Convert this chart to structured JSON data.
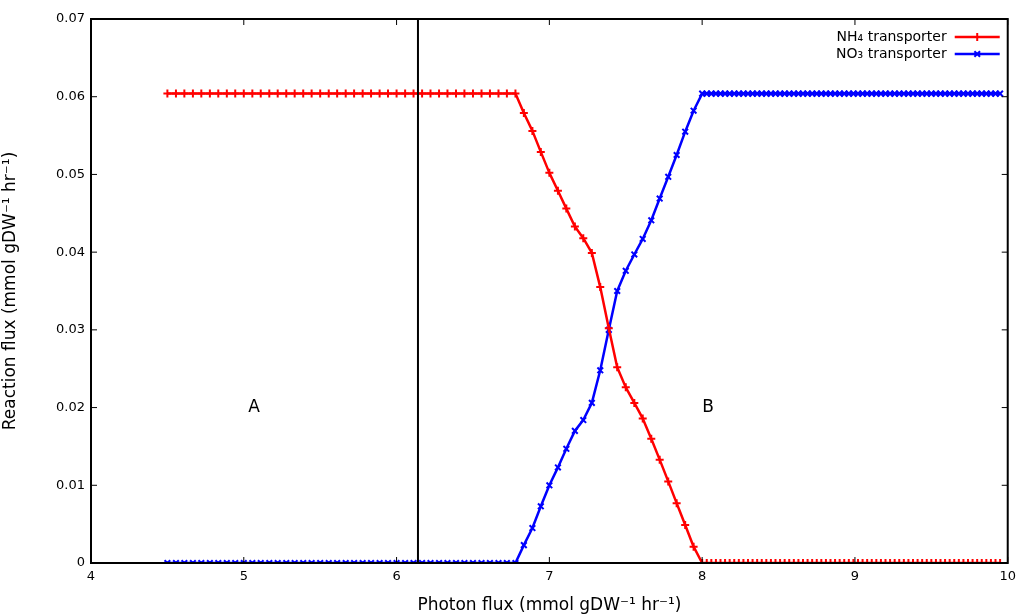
{
  "chart_data": {
    "type": "line",
    "xlabel": "Photon flux (mmol gDW⁻¹ hr⁻¹)",
    "ylabel": "Reaction flux (mmol gDW⁻¹ hr⁻¹)",
    "x": [
      4.5,
      4.556,
      4.611,
      4.667,
      4.722,
      4.778,
      4.833,
      4.889,
      4.944,
      5.0,
      5.056,
      5.111,
      5.167,
      5.222,
      5.278,
      5.333,
      5.389,
      5.444,
      5.5,
      5.556,
      5.611,
      5.667,
      5.722,
      5.778,
      5.833,
      5.889,
      5.944,
      6.0,
      6.056,
      6.111,
      6.167,
      6.222,
      6.278,
      6.333,
      6.389,
      6.444,
      6.5,
      6.556,
      6.611,
      6.667,
      6.722,
      6.778,
      6.833,
      6.889,
      6.944,
      7.0,
      7.056,
      7.111,
      7.167,
      7.222,
      7.278,
      7.333,
      7.389,
      7.444,
      7.5,
      7.556,
      7.611,
      7.667,
      7.722,
      7.778,
      7.833,
      7.889,
      7.944,
      8.0,
      8.03,
      8.06,
      8.09,
      8.12,
      8.15,
      8.18,
      8.21,
      8.24,
      8.27,
      8.3,
      8.33,
      8.36,
      8.39,
      8.42,
      8.45,
      8.48,
      8.51,
      8.54,
      8.57,
      8.6,
      8.63,
      8.66,
      8.69,
      8.72,
      8.75,
      8.78,
      8.81,
      8.84,
      8.87,
      8.9,
      8.93,
      8.96,
      8.99,
      9.02,
      9.05,
      9.08,
      9.11,
      9.14,
      9.17,
      9.2,
      9.23,
      9.26,
      9.29,
      9.32,
      9.35,
      9.38,
      9.41,
      9.44,
      9.47,
      9.5,
      9.53,
      9.56,
      9.59,
      9.62,
      9.65,
      9.68,
      9.71,
      9.74,
      9.77,
      9.8,
      9.83,
      9.86,
      9.89,
      9.92,
      9.95
    ],
    "series": [
      {
        "name": "NH₄ transporter",
        "color": "#ff0000",
        "marker": "cross",
        "values": [
          0.0604,
          0.0604,
          0.0604,
          0.0604,
          0.0604,
          0.0604,
          0.0604,
          0.0604,
          0.0604,
          0.0604,
          0.0604,
          0.0604,
          0.0604,
          0.0604,
          0.0604,
          0.0604,
          0.0604,
          0.0604,
          0.0604,
          0.0604,
          0.0604,
          0.0604,
          0.0604,
          0.0604,
          0.0604,
          0.0604,
          0.0604,
          0.0604,
          0.0604,
          0.0604,
          0.0604,
          0.0604,
          0.0604,
          0.0604,
          0.0604,
          0.0604,
          0.0604,
          0.0604,
          0.0604,
          0.0604,
          0.0604,
          0.0604,
          0.0579,
          0.0556,
          0.0529,
          0.0502,
          0.0479,
          0.0456,
          0.0433,
          0.0418,
          0.0399,
          0.0355,
          0.0302,
          0.0252,
          0.0226,
          0.0206,
          0.0186,
          0.016,
          0.0133,
          0.0105,
          0.0077,
          0.0049,
          0.0021,
          0,
          0,
          0,
          0,
          0,
          0,
          0,
          0,
          0,
          0,
          0,
          0,
          0,
          0,
          0,
          0,
          0,
          0,
          0,
          0,
          0,
          0,
          0,
          0,
          0,
          0,
          0,
          0,
          0,
          0,
          0,
          0,
          0,
          0,
          0,
          0,
          0,
          0,
          0,
          0,
          0,
          0,
          0,
          0,
          0,
          0,
          0,
          0,
          0,
          0,
          0,
          0,
          0,
          0,
          0,
          0,
          0,
          0,
          0,
          0,
          0,
          0,
          0,
          0,
          0,
          0
        ]
      },
      {
        "name": "NO₃ transporter",
        "color": "#0000ff",
        "marker": "crossRot",
        "values": [
          0,
          0,
          0,
          0,
          0,
          0,
          0,
          0,
          0,
          0,
          0,
          0,
          0,
          0,
          0,
          0,
          0,
          0,
          0,
          0,
          0,
          0,
          0,
          0,
          0,
          0,
          0,
          0,
          0,
          0,
          0,
          0,
          0,
          0,
          0,
          0,
          0,
          0,
          0,
          0,
          0,
          0,
          0.0023,
          0.0045,
          0.0073,
          0.01,
          0.0123,
          0.0147,
          0.017,
          0.0184,
          0.0206,
          0.0248,
          0.03,
          0.035,
          0.0376,
          0.0397,
          0.0417,
          0.0441,
          0.0469,
          0.0497,
          0.0525,
          0.0555,
          0.0582,
          0.0604,
          0.0604,
          0.0604,
          0.0604,
          0.0604,
          0.0604,
          0.0604,
          0.0604,
          0.0604,
          0.0604,
          0.0604,
          0.0604,
          0.0604,
          0.0604,
          0.0604,
          0.0604,
          0.0604,
          0.0604,
          0.0604,
          0.0604,
          0.0604,
          0.0604,
          0.0604,
          0.0604,
          0.0604,
          0.0604,
          0.0604,
          0.0604,
          0.0604,
          0.0604,
          0.0604,
          0.0604,
          0.0604,
          0.0604,
          0.0604,
          0.0604,
          0.0604,
          0.0604,
          0.0604,
          0.0604,
          0.0604,
          0.0604,
          0.0604,
          0.0604,
          0.0604,
          0.0604,
          0.0604,
          0.0604,
          0.0604,
          0.0604,
          0.0604,
          0.0604,
          0.0604,
          0.0604,
          0.0604,
          0.0604,
          0.0604,
          0.0604,
          0.0604,
          0.0604,
          0.0604,
          0.0604,
          0.0604,
          0.0604,
          0.0604,
          0.0604
        ]
      }
    ],
    "xlim": [
      4,
      10
    ],
    "xticks": [
      4,
      5,
      6,
      7,
      8,
      9,
      10
    ],
    "ylim": [
      0,
      0.07
    ],
    "yticks": [
      0,
      0.01,
      0.02,
      0.03,
      0.04,
      0.05,
      0.06,
      0.07
    ],
    "ref_lines": [
      {
        "axis": "x",
        "value": 6.14,
        "color": "#000000"
      }
    ],
    "annotations": [
      "A",
      "B"
    ],
    "legend": "top right",
    "grid": false,
    "line_style": "solid"
  }
}
